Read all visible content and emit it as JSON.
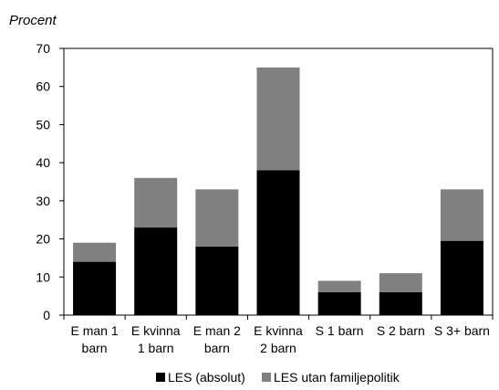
{
  "chart_data": {
    "type": "bar",
    "stacked": true,
    "ylabel": "Procent",
    "xlabel": "",
    "ylim": [
      0,
      70
    ],
    "yticks": [
      0,
      10,
      20,
      30,
      40,
      50,
      60,
      70
    ],
    "categories": [
      [
        "E man  1",
        "barn"
      ],
      [
        "E kvinna",
        "1 barn"
      ],
      [
        "E man 2",
        "barn"
      ],
      [
        "E kvinna",
        "2 barn"
      ],
      [
        "S 1 barn"
      ],
      [
        "S 2 barn"
      ],
      [
        "S 3+ barn"
      ]
    ],
    "series": [
      {
        "name": "LES (absolut)",
        "color": "#000000",
        "values": [
          14,
          23,
          18,
          38,
          6,
          6,
          19.5
        ]
      },
      {
        "name": "LES utan familjepolitik",
        "color": "#808080",
        "values": [
          5,
          13,
          15,
          27,
          3,
          5,
          13.5
        ]
      }
    ],
    "grid": false,
    "legend_position": "bottom"
  }
}
